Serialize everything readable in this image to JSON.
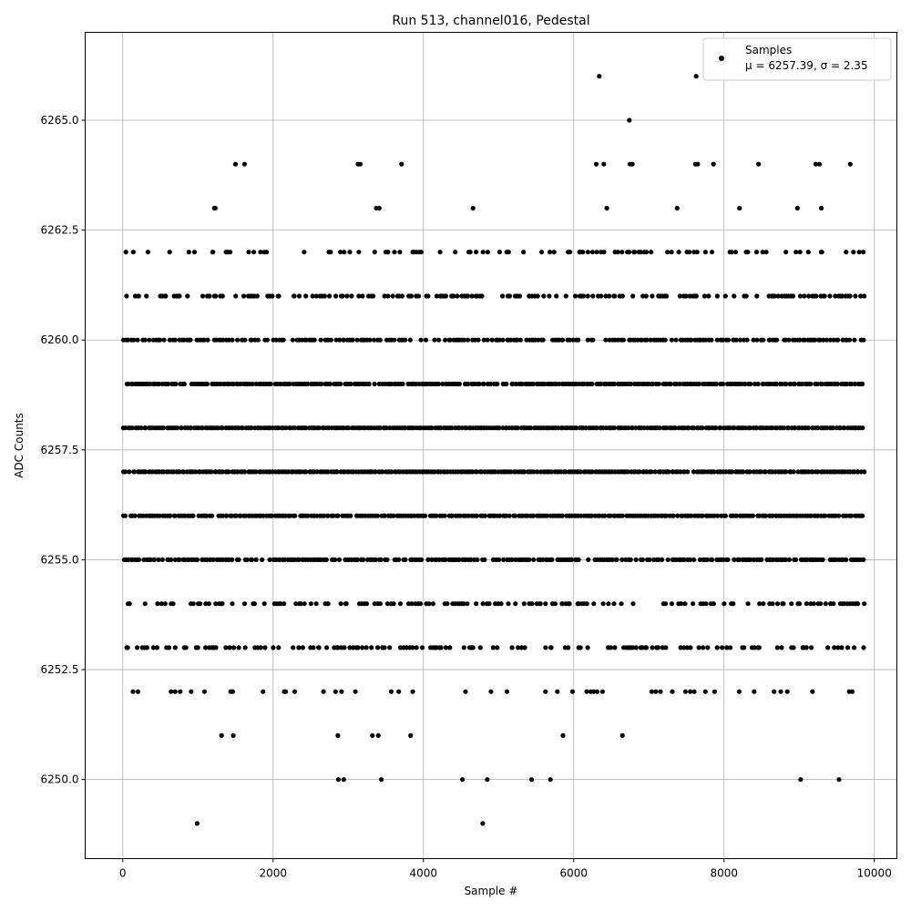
{
  "chart_data": {
    "type": "scatter",
    "title": "Run 513, channel016, Pedestal",
    "xlabel": "Sample #",
    "ylabel": "ADC Counts",
    "xlim": [
      -500,
      10300
    ],
    "ylim": [
      6248.2,
      6267.0
    ],
    "xticks": [
      0,
      2000,
      4000,
      6000,
      8000,
      10000
    ],
    "xtick_labels": [
      "0",
      "2000",
      "4000",
      "6000",
      "8000",
      "10000"
    ],
    "yticks": [
      6250.0,
      6252.5,
      6255.0,
      6257.5,
      6260.0,
      6262.5,
      6265.0
    ],
    "ytick_labels": [
      "6250.0",
      "6252.5",
      "6255.0",
      "6257.5",
      "6260.0",
      "6262.5",
      "6265.0"
    ],
    "grid": true,
    "marker_color": "#000000",
    "legend": {
      "placement": "top-right",
      "entries": [
        {
          "label": "Samples",
          "stats": "μ = 6257.39, σ = 2.35"
        }
      ]
    },
    "x_range_of_samples": [
      0,
      9850
    ],
    "sample_levels": [
      {
        "y": 6258,
        "density": 1.0
      },
      {
        "y": 6257,
        "density": 0.98
      },
      {
        "y": 6256,
        "density": 0.95
      },
      {
        "y": 6259,
        "density": 0.9
      },
      {
        "y": 6255,
        "density": 0.8
      },
      {
        "y": 6260,
        "density": 0.72
      },
      {
        "y": 6261,
        "density": 0.5
      },
      {
        "y": 6253,
        "density": 0.42
      },
      {
        "y": 6254,
        "density": 0.38
      },
      {
        "y": 6262,
        "density": 0.26
      },
      {
        "y": 6252,
        "density": 0.14
      },
      {
        "y": 6263,
        "density": 0.05
      },
      {
        "y": 6251,
        "density": 0.035
      }
    ],
    "sparse_points": [
      {
        "x": 1500,
        "y": 6264
      },
      {
        "x": 1620,
        "y": 6264
      },
      {
        "x": 3130,
        "y": 6264
      },
      {
        "x": 3160,
        "y": 6264
      },
      {
        "x": 3710,
        "y": 6264
      },
      {
        "x": 6300,
        "y": 6264
      },
      {
        "x": 6400,
        "y": 6264
      },
      {
        "x": 6750,
        "y": 6264
      },
      {
        "x": 6780,
        "y": 6264
      },
      {
        "x": 7620,
        "y": 6264
      },
      {
        "x": 7650,
        "y": 6264
      },
      {
        "x": 7860,
        "y": 6264
      },
      {
        "x": 8460,
        "y": 6264
      },
      {
        "x": 9220,
        "y": 6264
      },
      {
        "x": 9270,
        "y": 6264
      },
      {
        "x": 9680,
        "y": 6264
      },
      {
        "x": 6740,
        "y": 6265
      },
      {
        "x": 6340,
        "y": 6266
      },
      {
        "x": 7630,
        "y": 6266
      },
      {
        "x": 2870,
        "y": 6250
      },
      {
        "x": 2940,
        "y": 6250
      },
      {
        "x": 3440,
        "y": 6250
      },
      {
        "x": 4520,
        "y": 6250
      },
      {
        "x": 4850,
        "y": 6250
      },
      {
        "x": 5440,
        "y": 6250
      },
      {
        "x": 5690,
        "y": 6250
      },
      {
        "x": 9020,
        "y": 6250
      },
      {
        "x": 9530,
        "y": 6250
      },
      {
        "x": 990,
        "y": 6249
      },
      {
        "x": 4790,
        "y": 6249
      }
    ]
  }
}
